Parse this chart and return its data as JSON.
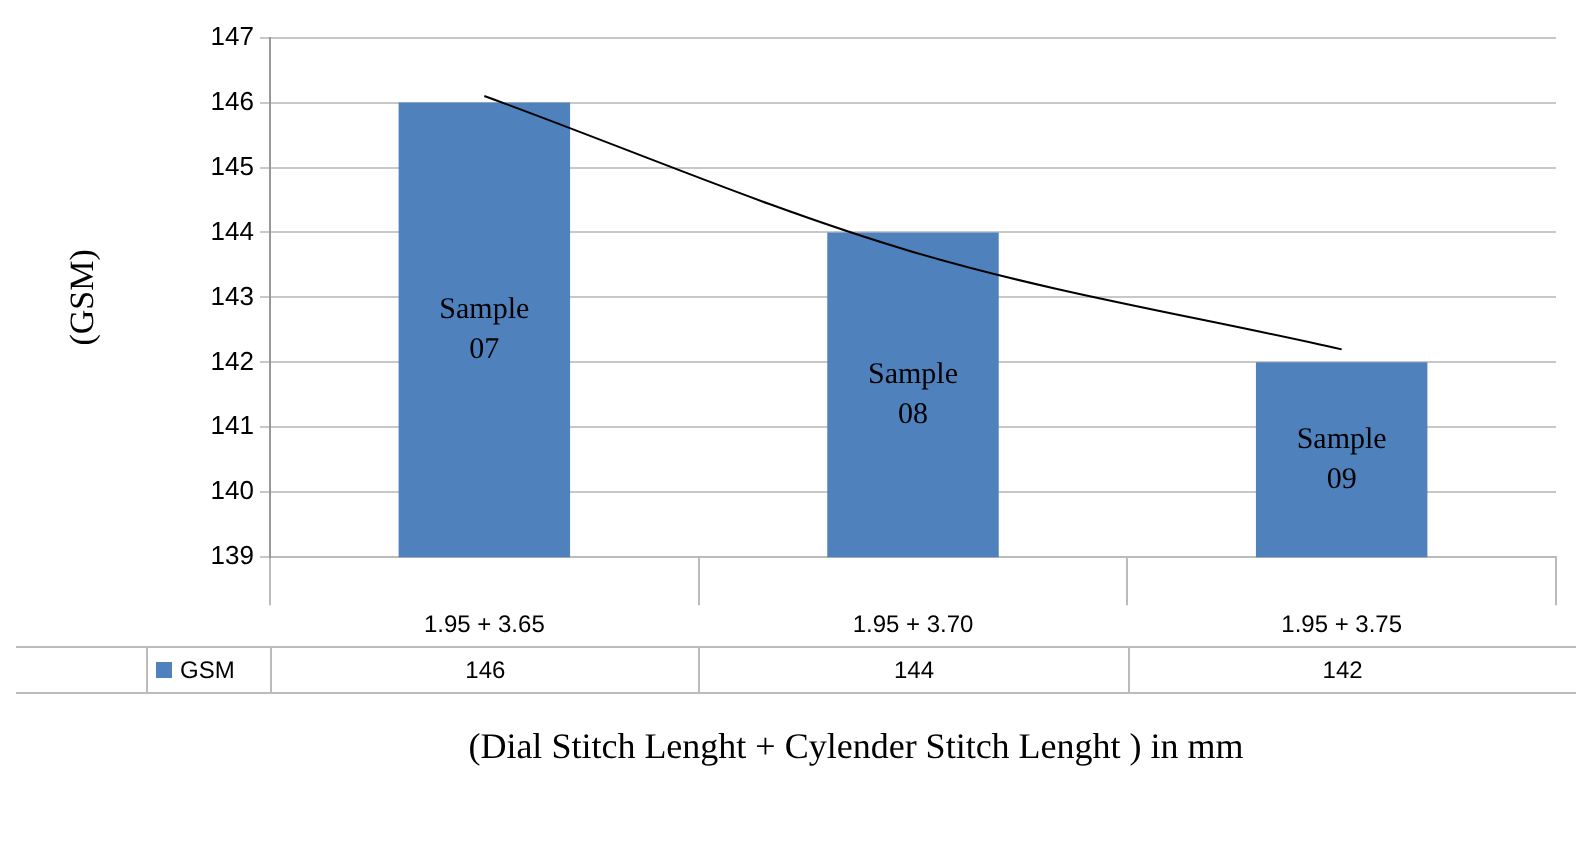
{
  "chart_data": {
    "type": "bar",
    "ylabel": "(GSM)",
    "xlabel": "(Dial Stitch Lenght + Cylender Stitch Lenght ) in mm",
    "categories": [
      "1.95 + 3.65",
      "1.95 + 3.70",
      "1.95 + 3.75"
    ],
    "series": [
      {
        "name": "GSM",
        "color": "#4f81bd",
        "values": [
          146,
          144,
          142
        ],
        "value_labels": [
          "146",
          "144",
          "142"
        ]
      },
      {
        "type": "line",
        "color": "#000000",
        "x": [
          "1.95 + 3.65",
          "1.95 + 3.70",
          "1.95 + 3.75"
        ],
        "values": [
          146.1,
          143.7,
          142.2
        ]
      }
    ],
    "ylim": [
      139,
      147
    ],
    "yticks": [
      139,
      140,
      141,
      142,
      143,
      144,
      145,
      146,
      147
    ],
    "grid": "y",
    "legend": "bottom",
    "marker": "none",
    "annotations": [
      "Sample 07",
      "Sample 08",
      "Sample 09"
    ]
  }
}
